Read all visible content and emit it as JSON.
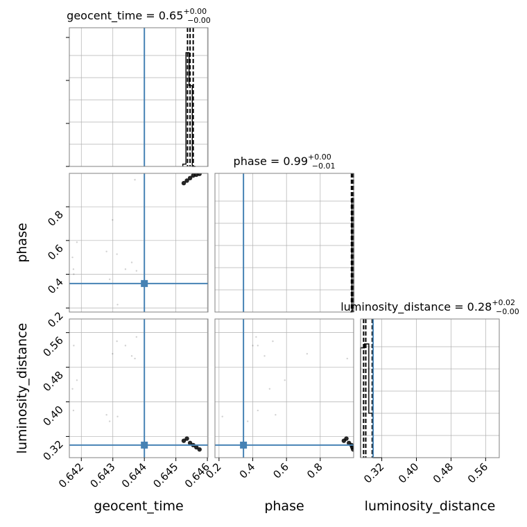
{
  "colors": {
    "truth": "#4682b4",
    "hist": "#000000",
    "quantile": "#000000",
    "grid": "#b0b0b0",
    "frame": "#808080",
    "samples": "#000000"
  },
  "chart_data": {
    "type": "corner",
    "parameters": [
      "geocent_time",
      "phase",
      "luminosity_distance"
    ],
    "titles": {
      "geocent_time": {
        "prefix": "geocent_time = 0.65",
        "upper": "+0.00",
        "lower": "−0.00"
      },
      "phase": {
        "prefix": "phase = 0.99",
        "upper": "+0.00",
        "lower": "−0.01"
      },
      "luminosity_distance": {
        "prefix": "luminosity_distance = 0.28",
        "upper": "+0.02",
        "lower": "−0.00"
      }
    },
    "ranges": {
      "geocent_time": [
        0.64162,
        0.64602
      ],
      "phase": [
        0.176,
        0.998
      ],
      "luminosity_distance": [
        0.271,
        0.5915
      ]
    },
    "truths": {
      "geocent_time": 0.644,
      "phase": 0.345,
      "luminosity_distance": 0.3
    },
    "ticks": {
      "geocent_time": {
        "values": [
          0.642,
          0.643,
          0.644,
          0.645,
          0.646
        ],
        "labels": [
          "0.642",
          "0.643",
          "0.644",
          "0.645",
          "0.646"
        ]
      },
      "phase": {
        "values": [
          0.2,
          0.4,
          0.6,
          0.8
        ],
        "labels": [
          "0.2",
          "0.4",
          "0.6",
          "0.8"
        ]
      },
      "luminosity_distance": {
        "values": [
          0.32,
          0.4,
          0.48,
          0.56
        ],
        "labels": [
          "0.32",
          "0.40",
          "0.48",
          "0.56"
        ]
      }
    },
    "quantiles": {
      "geocent_time": [
        0.64537,
        0.64545,
        0.64555
      ],
      "phase": [
        0.985,
        0.993,
        0.997
      ],
      "luminosity_distance": [
        0.278,
        0.283,
        0.298
      ]
    },
    "histograms": {
      "geocent_time": {
        "edges": [
          0.64522,
          0.64532,
          0.64542,
          0.64552,
          0.64562
        ],
        "counts": [
          0.02,
          1.0,
          0.71,
          0.0
        ]
      },
      "phase": {
        "edges": [
          0.978,
          0.988,
          0.998
        ],
        "counts": [
          0.0,
          1.0
        ]
      },
      "luminosity_distance": {
        "edges": [
          0.271,
          0.28,
          0.29,
          0.3,
          0.31,
          0.32
        ],
        "counts": [
          0.84,
          0.87,
          0.34,
          0.0,
          0.0
        ]
      }
    },
    "samples": [
      [
        0.64186,
        0.59,
        0.45
      ],
      [
        0.64172,
        0.5,
        0.43
      ],
      [
        0.64175,
        0.43,
        0.38
      ],
      [
        0.64176,
        0.4,
        0.53
      ],
      [
        0.64299,
        0.722,
        0.511
      ],
      [
        0.6428,
        0.535,
        0.37
      ],
      [
        0.6429,
        0.37,
        0.355
      ],
      [
        0.64315,
        0.22,
        0.366
      ],
      [
        0.64313,
        0.519,
        0.54
      ],
      [
        0.6434,
        0.43,
        0.53
      ],
      [
        0.6436,
        0.47,
        0.506
      ],
      [
        0.64375,
        0.42,
        0.55
      ],
      [
        0.6437,
        0.96,
        0.5
      ],
      [
        0.64525,
        0.94,
        0.31
      ],
      [
        0.64535,
        0.955,
        0.315
      ],
      [
        0.64545,
        0.97,
        0.305
      ],
      [
        0.64555,
        0.985,
        0.3
      ],
      [
        0.64565,
        0.99,
        0.295
      ],
      [
        0.64575,
        0.995,
        0.29
      ]
    ],
    "axis_labels": {
      "geocent_time": "geocent_time",
      "phase": "phase",
      "luminosity_distance": "luminosity_distance"
    },
    "grid": true
  }
}
